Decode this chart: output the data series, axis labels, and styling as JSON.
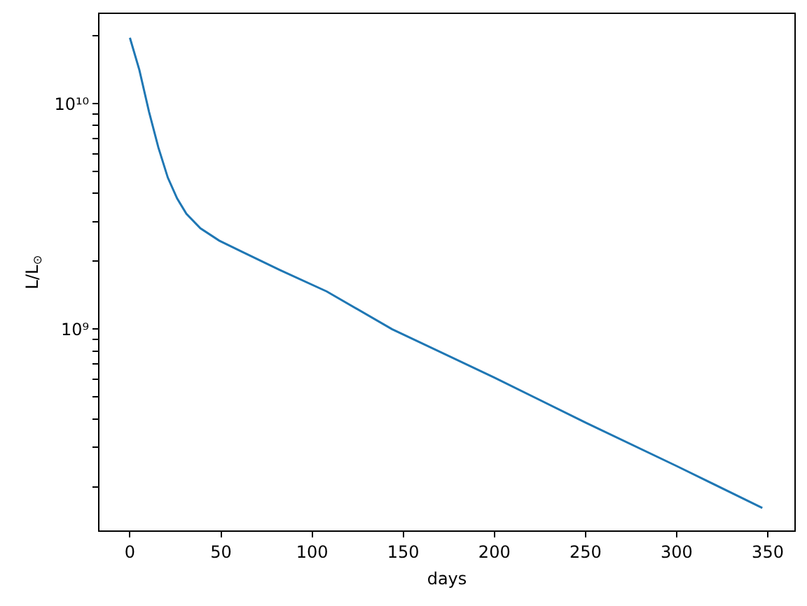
{
  "chart_data": {
    "type": "line",
    "xlabel": "days",
    "ylabel": "L/L$_{⊙}$",
    "log": "y",
    "grid": false,
    "marker": "none",
    "line_style": "solid",
    "xlim": [
      -16.7,
      364.6
    ],
    "xticks": [
      0,
      50,
      100,
      150,
      200,
      250,
      300,
      350
    ],
    "ylim": [
      128000000.0,
      25000000000.0
    ],
    "yticks": [
      {
        "value": 200000000.0,
        "label": null
      },
      {
        "value": 300000000.0,
        "label": null
      },
      {
        "value": 400000000.0,
        "label": null
      },
      {
        "value": 500000000.0,
        "label": null
      },
      {
        "value": 600000000.0,
        "label": null
      },
      {
        "value": 700000000.0,
        "label": null
      },
      {
        "value": 800000000.0,
        "label": null
      },
      {
        "value": 900000000.0,
        "label": null
      },
      {
        "value": 1000000000.0,
        "label": "10⁹"
      },
      {
        "value": 2000000000.0,
        "label": null
      },
      {
        "value": 3000000000.0,
        "label": null
      },
      {
        "value": 4000000000.0,
        "label": null
      },
      {
        "value": 5000000000.0,
        "label": null
      },
      {
        "value": 6000000000.0,
        "label": null
      },
      {
        "value": 7000000000.0,
        "label": null
      },
      {
        "value": 8000000000.0,
        "label": null
      },
      {
        "value": 9000000000.0,
        "label": null
      },
      {
        "value": 10000000000.0,
        "label": "10¹⁰"
      },
      {
        "value": 20000000000.0,
        "label": null
      }
    ],
    "x": [
      0,
      5.2,
      10.5,
      15.6,
      20.8,
      25.9,
      31,
      38.7,
      49,
      61.8,
      82.3,
      108,
      143.8,
      200,
      250,
      300,
      347
    ],
    "series": [
      {
        "color": "#1f77b4",
        "values": [
          19600000000.0,
          14100000000.0,
          9200000000.0,
          6400000000.0,
          4700000000.0,
          3800000000.0,
          3250000000.0,
          2800000000.0,
          2470000000.0,
          2200000000.0,
          1830000000.0,
          1470000000.0,
          1000000000.0,
          610000000.0,
          385000000.0,
          247000000.0,
          161000000.0
        ]
      }
    ]
  }
}
